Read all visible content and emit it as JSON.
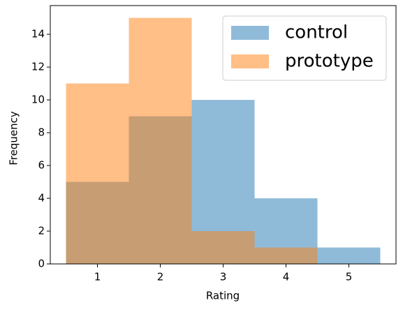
{
  "chart_data": {
    "type": "histogram",
    "bins": [
      0.5,
      1.5,
      2.5,
      3.5,
      4.5,
      5.5
    ],
    "series": [
      {
        "name": "control",
        "color": "#1f77b4",
        "values": [
          5,
          9,
          10,
          4,
          1
        ]
      },
      {
        "name": "prototype",
        "color": "#ff7f0e",
        "values": [
          11,
          15,
          2,
          1,
          0
        ]
      }
    ],
    "xlabel": "Rating",
    "ylabel": "Frequency",
    "xlim": [
      0.25,
      5.75
    ],
    "xticks": [
      1,
      2,
      3,
      4,
      5
    ],
    "ylim": [
      0,
      15.75
    ],
    "yticks": [
      0,
      2,
      4,
      6,
      8,
      10,
      12,
      14
    ],
    "alpha": 0.5,
    "legend": "upper right"
  }
}
